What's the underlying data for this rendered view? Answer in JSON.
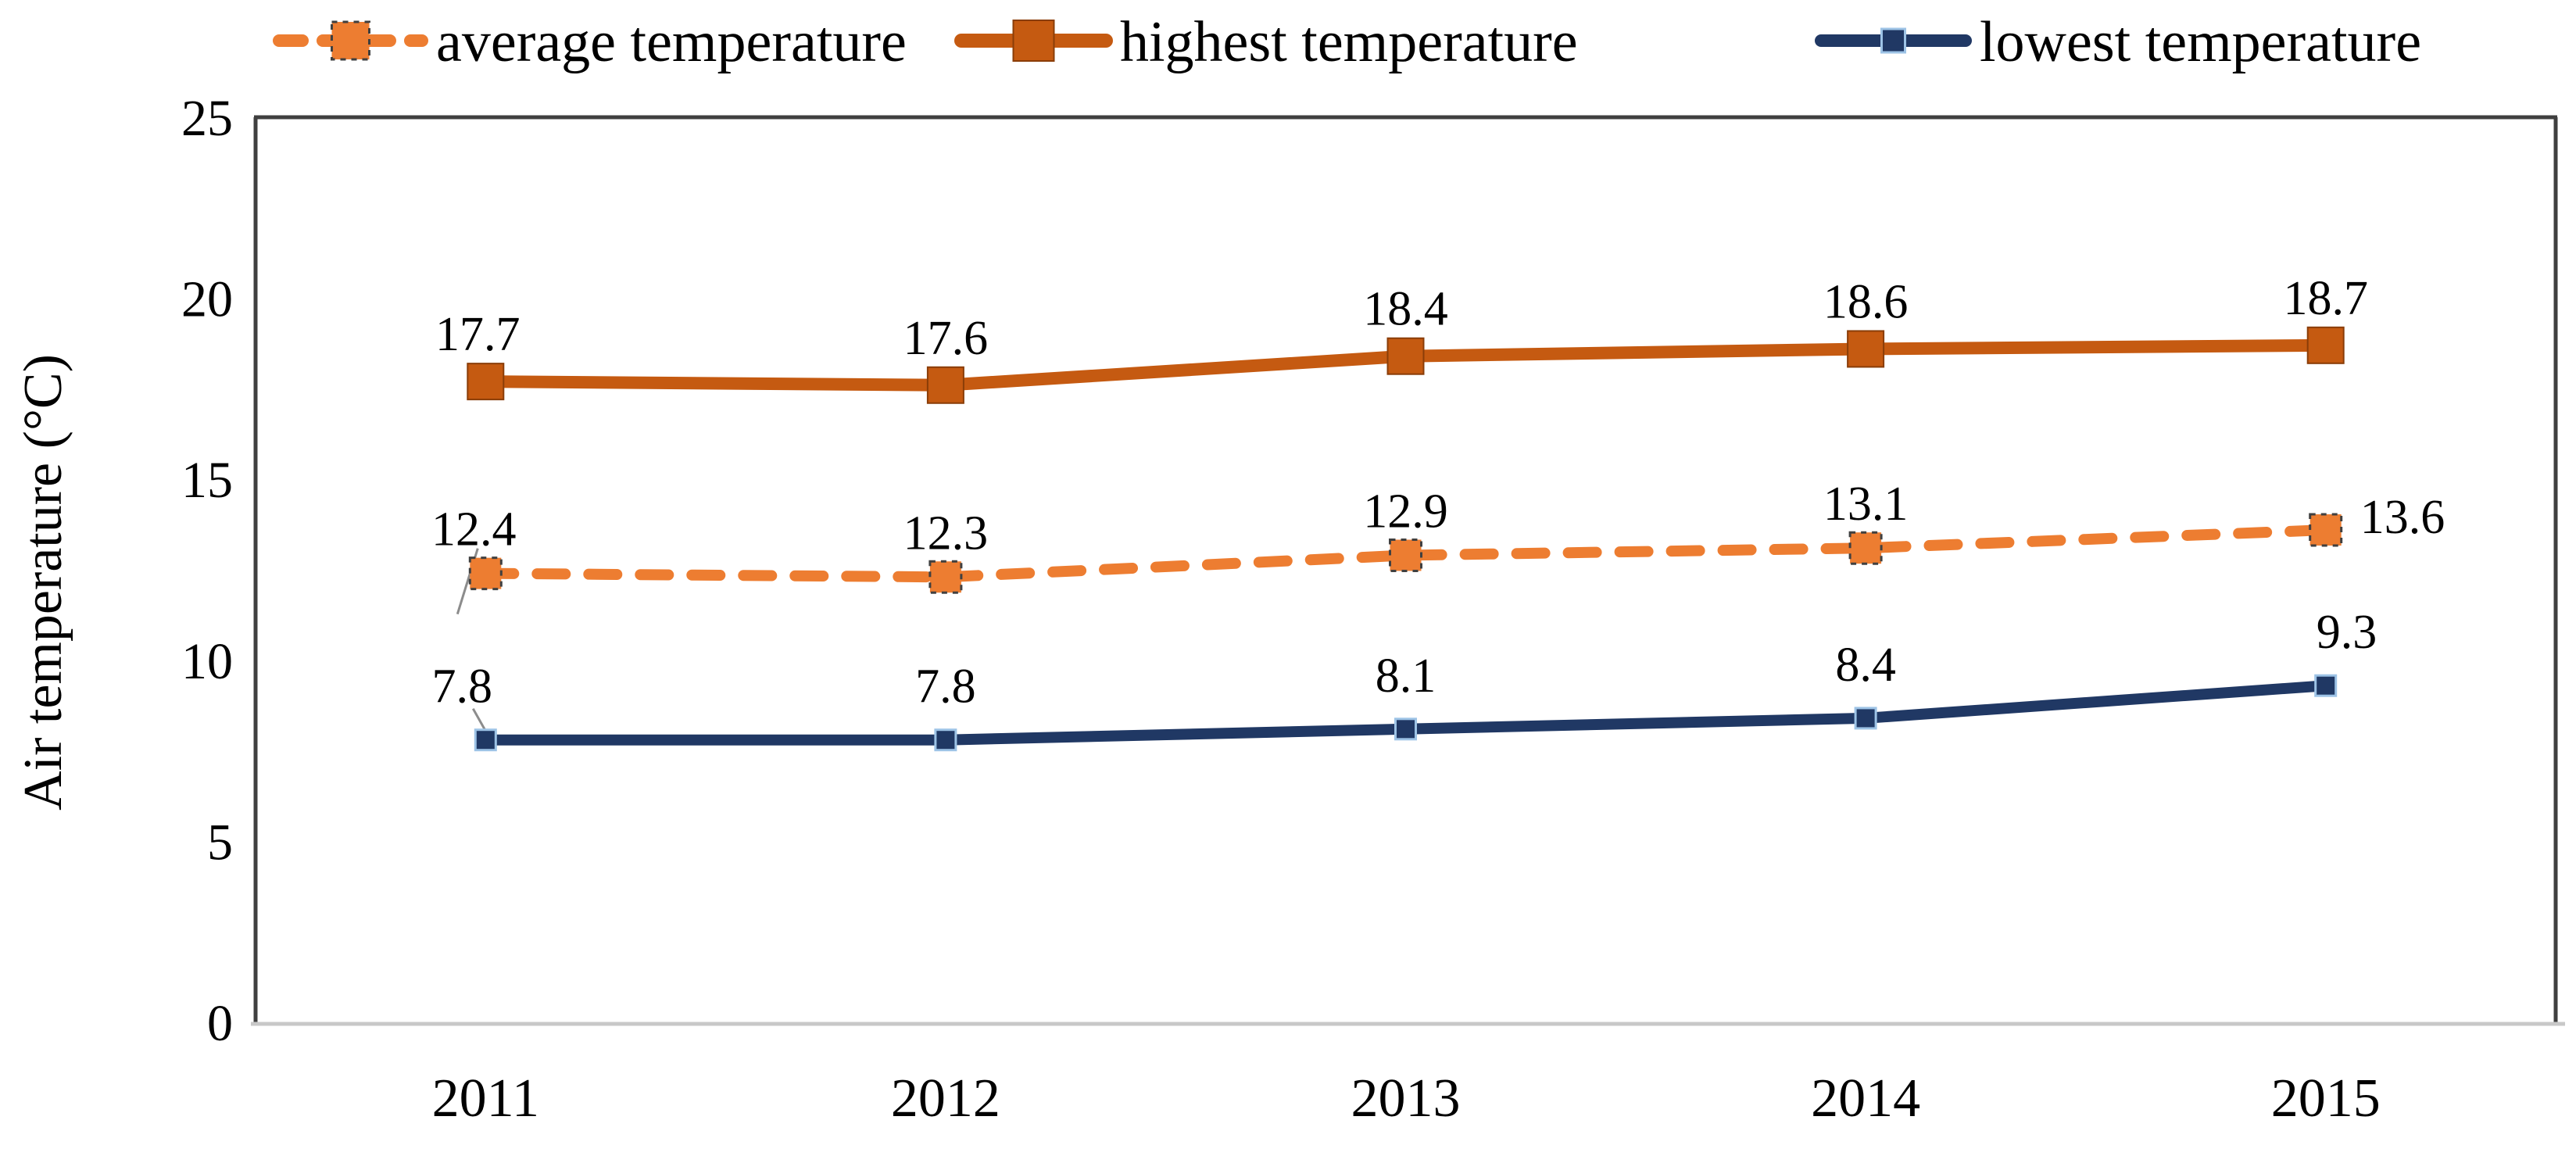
{
  "figure": {
    "background": "#ffffff",
    "border_color": "#3f3f3f",
    "baseline_color": "#c8c8c8",
    "text_color": "#000000"
  },
  "chart_data": {
    "type": "line",
    "title": "",
    "xlabel": "",
    "ylabel": "Air temperature (°C)",
    "categories": [
      "2011",
      "2012",
      "2013",
      "2014",
      "2015"
    ],
    "series": [
      {
        "name": "average temperature",
        "values": [
          12.4,
          12.3,
          12.9,
          13.1,
          13.6
        ],
        "color": "#ED7D31",
        "line_style": "dashed",
        "marker": "square"
      },
      {
        "name": "highest temperature",
        "values": [
          17.7,
          17.6,
          18.4,
          18.6,
          18.7
        ],
        "color": "#C55A11",
        "line_style": "solid",
        "marker": "square"
      },
      {
        "name": "lowest temperature",
        "values": [
          7.8,
          7.8,
          8.1,
          8.4,
          9.3
        ],
        "color": "#203864",
        "line_style": "solid",
        "marker": "square-small"
      }
    ],
    "data_labels": {
      "average temperature": [
        "12.4",
        "12.3",
        "12.9",
        "13.1",
        "13.6"
      ],
      "highest temperature": [
        "17.7",
        "17.6",
        "18.4",
        "18.6",
        "18.7"
      ],
      "lowest temperature": [
        "7.8",
        "7.8",
        "8.1",
        "8.4",
        "9.3"
      ]
    },
    "ylim": [
      0,
      25
    ],
    "yticks": [
      "0",
      "5",
      "10",
      "15",
      "20",
      "25"
    ],
    "grid": false,
    "legend_position": "top",
    "legend": [
      "average temperature",
      "highest temperature",
      "lowest temperature"
    ]
  }
}
